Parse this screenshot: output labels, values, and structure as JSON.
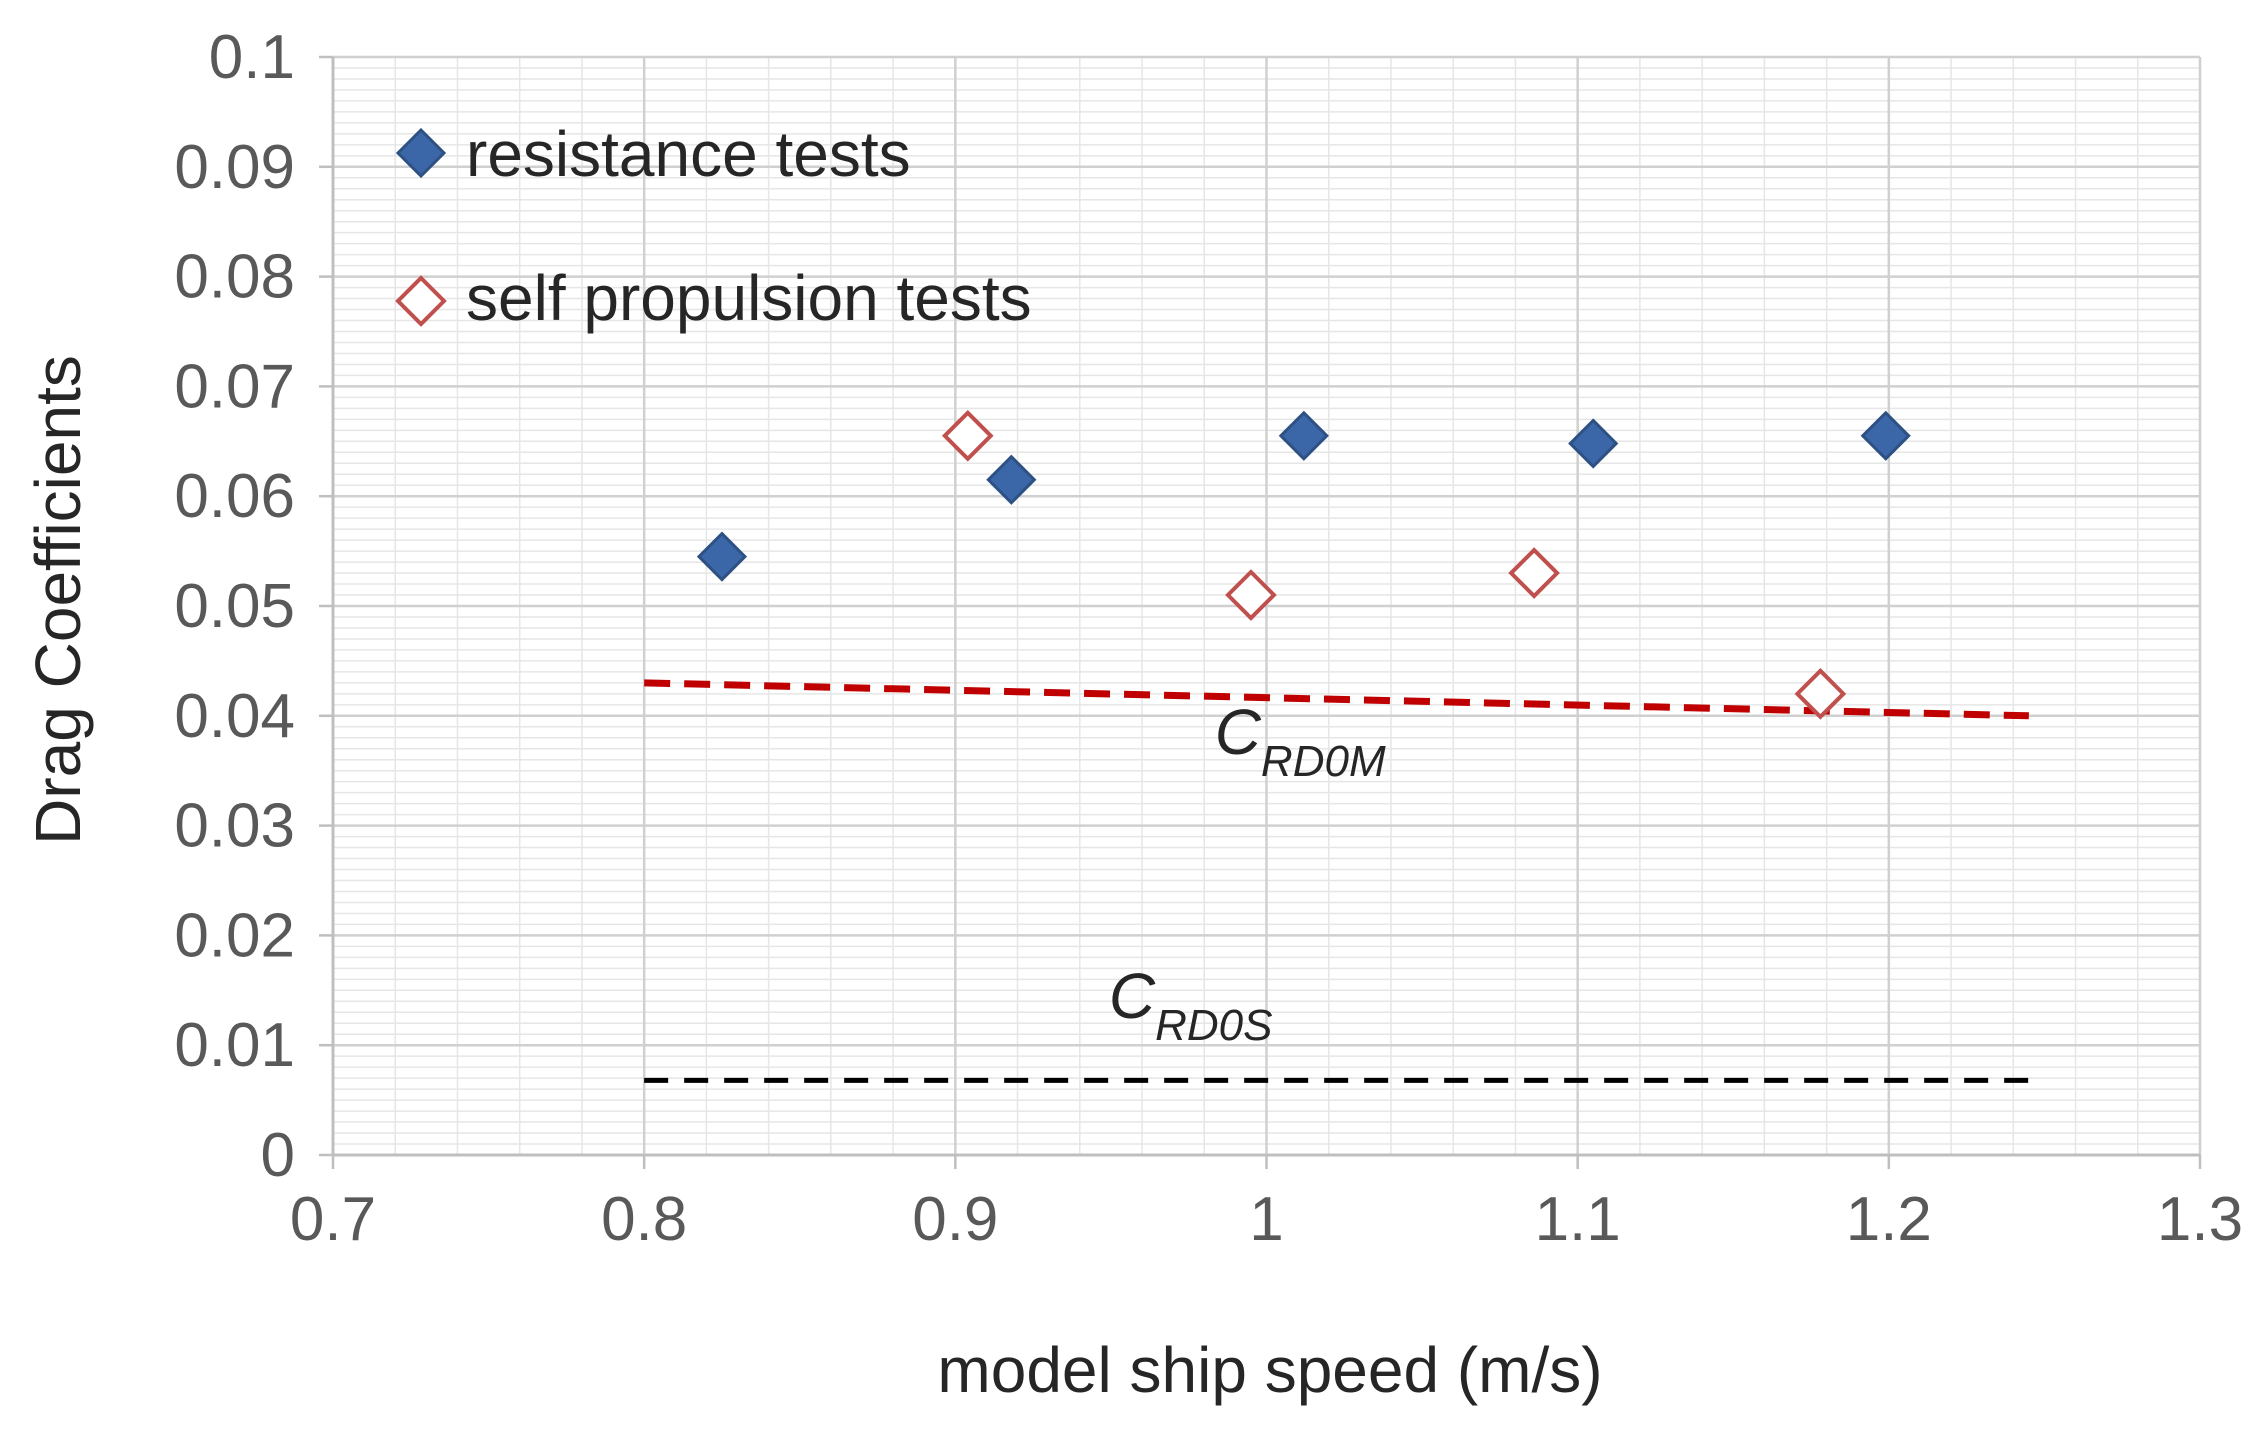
{
  "chart_data": {
    "type": "scatter",
    "title": "",
    "xlabel": "model ship speed (m/s)",
    "ylabel": "Drag Coefficients",
    "xlim": [
      0.7,
      1.3
    ],
    "ylim": [
      0,
      0.1
    ],
    "x_ticks": [
      "0.7",
      "0.8",
      "0.9",
      "1",
      "1.1",
      "1.2",
      "1.3"
    ],
    "y_ticks": [
      "0",
      "0.01",
      "0.02",
      "0.03",
      "0.04",
      "0.05",
      "0.06",
      "0.07",
      "0.08",
      "0.09",
      "0.1"
    ],
    "grid": true,
    "legend_position": "top-left",
    "series": [
      {
        "name": "resistance tests",
        "marker": "diamond-filled",
        "color": "#3b67a8",
        "points": [
          [
            0.825,
            0.0545
          ],
          [
            0.918,
            0.0615
          ],
          [
            1.012,
            0.0655
          ],
          [
            1.105,
            0.0648
          ],
          [
            1.199,
            0.0655
          ]
        ]
      },
      {
        "name": "self propulsion tests",
        "marker": "diamond-open",
        "color": "#c0504d",
        "points": [
          [
            0.904,
            0.0655
          ],
          [
            0.995,
            0.051
          ],
          [
            1.086,
            0.053
          ],
          [
            1.178,
            0.042
          ]
        ]
      }
    ],
    "lines": [
      {
        "name": "CRD0M",
        "base": "C",
        "sub": "RD0M",
        "color": "#c00000",
        "style": "dashed",
        "points": [
          [
            0.8,
            0.043
          ],
          [
            1.245,
            0.04
          ]
        ],
        "label_at": [
          0.984,
          0.0365
        ]
      },
      {
        "name": "CRD0S",
        "base": "C",
        "sub": "RD0S",
        "color": "#000000",
        "style": "dashed",
        "points": [
          [
            0.8,
            0.0068
          ],
          [
            1.245,
            0.0068
          ]
        ],
        "label_at": [
          0.95,
          0.0125
        ]
      }
    ]
  }
}
